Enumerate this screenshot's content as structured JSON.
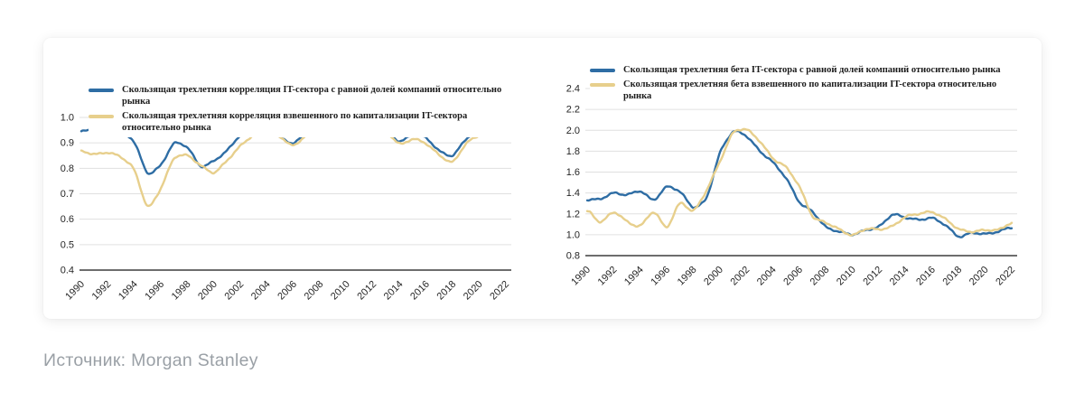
{
  "source": {
    "text": "Источник: Morgan Stanley"
  },
  "colors": {
    "equal_weight_line": "#2e6da4",
    "cap_weight_line": "#e7cf8c",
    "grid": "#e0e0e0",
    "axis": "#3d3d3d",
    "tick_text": "#262626",
    "legend_text": "#1b1b1b",
    "source_text": "#9aa0a6",
    "card_background": "#ffffff"
  },
  "chart_data": [
    {
      "type": "line",
      "title": "",
      "xlabel": "",
      "ylabel": "",
      "grid": true,
      "legend_position": "top-left",
      "ylim": [
        0.4,
        1.0
      ],
      "ytick_step": 0.1,
      "y_tick_labels": [
        "1.0",
        "0.9",
        "0.8",
        "0.7",
        "0.6",
        "0.5",
        "0.4"
      ],
      "x": [
        1990,
        1991,
        1992,
        1993,
        1994,
        1995,
        1996,
        1997,
        1998,
        1999,
        2000,
        2001,
        2002,
        2003,
        2004,
        2005,
        2006,
        2007,
        2008,
        2009,
        2010,
        2011,
        2012,
        2013,
        2014,
        2015,
        2016,
        2017,
        2018,
        2019,
        2020,
        2021,
        2022
      ],
      "x_tick_labels": [
        "1990",
        "1992",
        "1994",
        "1996",
        "1998",
        "2000",
        "2002",
        "2004",
        "2006",
        "2008",
        "2010",
        "2012",
        "2014",
        "2016",
        "2018",
        "2020",
        "2022"
      ],
      "series": [
        {
          "key": "equal-weight",
          "name": "Скользящая трехлетняя корреляция IT-сектора с равной долей компаний относительно рынка",
          "color": "#2e6da4",
          "values": [
            0.945,
            0.95,
            0.955,
            0.95,
            0.91,
            0.77,
            0.81,
            0.905,
            0.885,
            0.8,
            0.83,
            0.87,
            0.935,
            0.95,
            0.945,
            0.92,
            0.895,
            0.945,
            0.965,
            0.96,
            0.965,
            0.955,
            0.96,
            0.95,
            0.9,
            0.935,
            0.92,
            0.865,
            0.845,
            0.92,
            0.95,
            0.96,
            0.955
          ]
        },
        {
          "key": "cap-weight",
          "name": "Скользящая трехлетняя корреляция взвешенного по капитализации IT-сектора относительно рынка",
          "color": "#e7cf8c",
          "values": [
            0.87,
            0.855,
            0.865,
            0.845,
            0.8,
            0.63,
            0.72,
            0.85,
            0.855,
            0.81,
            0.775,
            0.83,
            0.89,
            0.935,
            0.935,
            0.925,
            0.88,
            0.935,
            0.95,
            0.945,
            0.95,
            0.945,
            0.95,
            0.945,
            0.89,
            0.92,
            0.9,
            0.85,
            0.815,
            0.9,
            0.93,
            0.955,
            0.96
          ]
        }
      ]
    },
    {
      "type": "line",
      "title": "",
      "xlabel": "",
      "ylabel": "",
      "grid": true,
      "legend_position": "top-left",
      "ylim": [
        0.8,
        2.4
      ],
      "ytick_step": 0.2,
      "y_tick_labels": [
        "2.4",
        "2.2",
        "2.0",
        "1.8",
        "1.6",
        "1.4",
        "1.2",
        "1.0",
        "0.8"
      ],
      "x": [
        1990,
        1991,
        1992,
        1993,
        1994,
        1995,
        1996,
        1997,
        1998,
        1999,
        2000,
        2001,
        2002,
        2003,
        2004,
        2005,
        2006,
        2007,
        2008,
        2009,
        2010,
        2011,
        2012,
        2013,
        2014,
        2015,
        2016,
        2017,
        2018,
        2019,
        2020,
        2021,
        2022
      ],
      "x_tick_labels": [
        "1990",
        "1992",
        "1994",
        "1996",
        "1998",
        "2000",
        "2002",
        "2004",
        "2006",
        "2008",
        "2010",
        "2012",
        "2014",
        "2016",
        "2018",
        "2020",
        "2022"
      ],
      "series": [
        {
          "key": "equal-weight",
          "name": "Скользящая трехлетняя бета IT-сектора с равной долей компаний относительно рынка",
          "color": "#2e6da4",
          "values": [
            1.33,
            1.34,
            1.41,
            1.38,
            1.43,
            1.31,
            1.47,
            1.42,
            1.25,
            1.33,
            1.8,
            2.0,
            1.95,
            1.8,
            1.7,
            1.55,
            1.3,
            1.22,
            1.06,
            1.03,
            1.0,
            1.05,
            1.07,
            1.2,
            1.16,
            1.14,
            1.17,
            1.1,
            0.97,
            1.02,
            1.0,
            1.03,
            1.08
          ]
        },
        {
          "key": "cap-weight",
          "name": "Скользящая трехлетняя бета взвешенного по капитализации IT-сектора относительно рынка",
          "color": "#e7cf8c",
          "values": [
            1.25,
            1.1,
            1.23,
            1.12,
            1.07,
            1.25,
            1.04,
            1.33,
            1.2,
            1.42,
            1.7,
            2.0,
            2.02,
            1.9,
            1.72,
            1.65,
            1.47,
            1.16,
            1.12,
            1.05,
            0.98,
            1.06,
            1.05,
            1.08,
            1.18,
            1.2,
            1.22,
            1.15,
            1.05,
            1.03,
            1.05,
            1.04,
            1.12
          ]
        }
      ]
    }
  ]
}
